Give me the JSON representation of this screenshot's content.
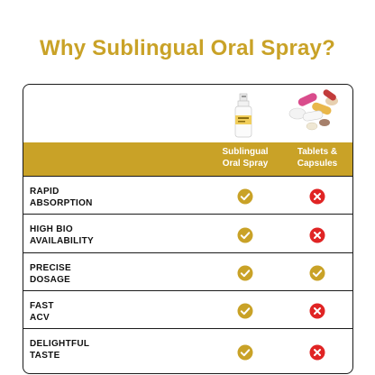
{
  "title": "Why Sublingual Oral Spray?",
  "columns": [
    {
      "label_line1": "Sublingual",
      "label_line2": "Oral Spray",
      "image": "spray-bottle-icon"
    },
    {
      "label_line1": "Tablets &",
      "label_line2": "Capsules",
      "image": "pills-icon"
    }
  ],
  "rows": [
    {
      "line1": "RAPID",
      "line2": "ABSORPTION",
      "spray": "check",
      "tablets": "cross"
    },
    {
      "line1": "HIGH BIO",
      "line2": "AVAILABILITY",
      "spray": "check",
      "tablets": "cross"
    },
    {
      "line1": "PRECISE",
      "line2": "DOSAGE",
      "spray": "check",
      "tablets": "check"
    },
    {
      "line1": "FAST",
      "line2": "ACV",
      "spray": "check",
      "tablets": "cross"
    },
    {
      "line1": "DELIGHTFUL",
      "line2": "TASTE",
      "spray": "check",
      "tablets": "cross"
    }
  ],
  "colors": {
    "gold": "#c9a227",
    "check": "#c9a227",
    "cross": "#e02424",
    "border": "#1a1a1a"
  }
}
